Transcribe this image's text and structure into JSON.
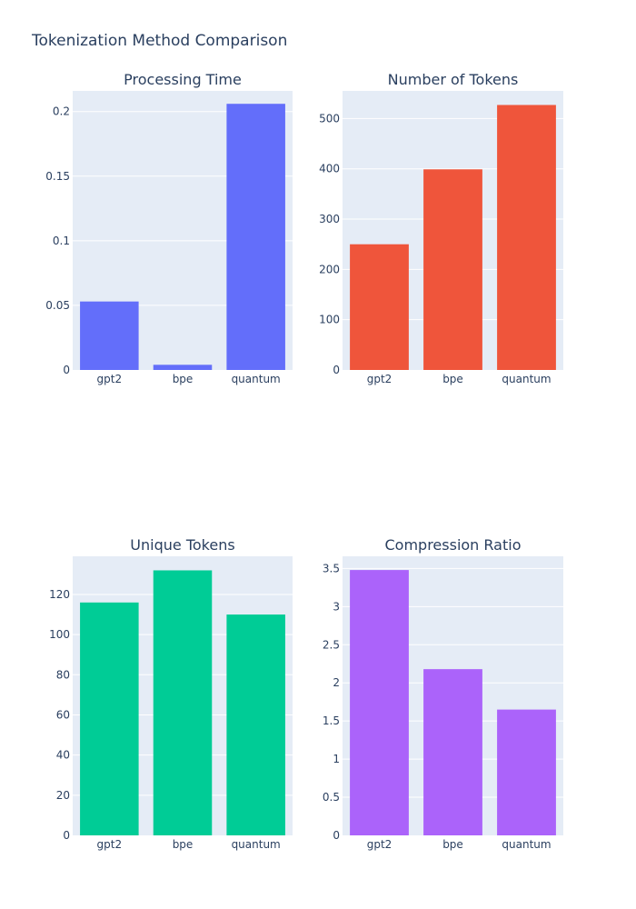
{
  "title": "Tokenization Method Comparison",
  "chart_data": [
    {
      "type": "bar",
      "title": "Processing Time",
      "categories": [
        "gpt2",
        "bpe",
        "quantum"
      ],
      "values": [
        0.053,
        0.004,
        0.206
      ],
      "ylim": [
        0,
        0.216
      ],
      "yticks": [
        0,
        0.05,
        0.1,
        0.15,
        0.2
      ],
      "ytick_labels": [
        "0",
        "0.05",
        "0.1",
        "0.15",
        "0.2"
      ],
      "color": "#636efa",
      "grid": true,
      "xlabel": "",
      "ylabel": ""
    },
    {
      "type": "bar",
      "title": "Number of Tokens",
      "categories": [
        "gpt2",
        "bpe",
        "quantum"
      ],
      "values": [
        250,
        399,
        527
      ],
      "ylim": [
        0,
        555
      ],
      "yticks": [
        0,
        100,
        200,
        300,
        400,
        500
      ],
      "ytick_labels": [
        "0",
        "100",
        "200",
        "300",
        "400",
        "500"
      ],
      "color": "#ef553b",
      "grid": true,
      "xlabel": "",
      "ylabel": ""
    },
    {
      "type": "bar",
      "title": "Unique Tokens",
      "categories": [
        "gpt2",
        "bpe",
        "quantum"
      ],
      "values": [
        116,
        132,
        110
      ],
      "ylim": [
        0,
        139
      ],
      "yticks": [
        0,
        20,
        40,
        60,
        80,
        100,
        120
      ],
      "ytick_labels": [
        "0",
        "20",
        "40",
        "60",
        "80",
        "100",
        "120"
      ],
      "color": "#00cc96",
      "grid": true,
      "xlabel": "",
      "ylabel": ""
    },
    {
      "type": "bar",
      "title": "Compression Ratio",
      "categories": [
        "gpt2",
        "bpe",
        "quantum"
      ],
      "values": [
        3.48,
        2.18,
        1.65
      ],
      "ylim": [
        0,
        3.66
      ],
      "yticks": [
        0,
        0.5,
        1,
        1.5,
        2,
        2.5,
        3,
        3.5
      ],
      "ytick_labels": [
        "0",
        "0.5",
        "1",
        "1.5",
        "2",
        "2.5",
        "3",
        "3.5"
      ],
      "color": "#ab63fa",
      "grid": true,
      "xlabel": "",
      "ylabel": ""
    }
  ]
}
